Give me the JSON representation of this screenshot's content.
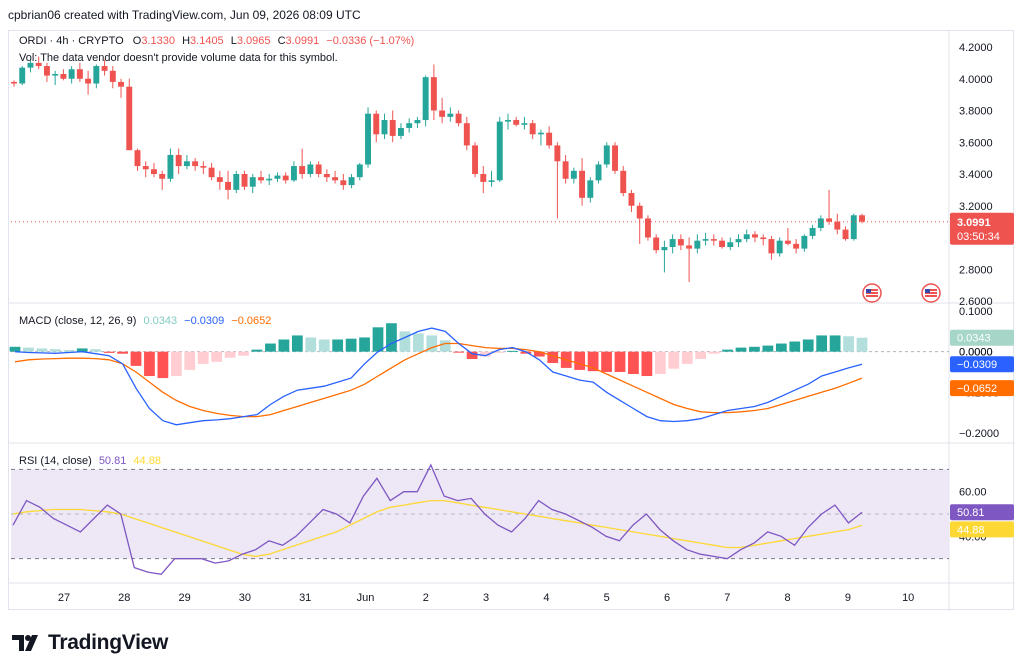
{
  "header": {
    "text": "cpbrian06 created with TradingView.com, Jun 09, 2026 08:09 UTC"
  },
  "legend": {
    "symbol": "ORDI · 4h · CRYPTO",
    "o_label": "O",
    "o_value": "3.1330",
    "h_label": "H",
    "h_value": "3.1405",
    "l_label": "L",
    "l_value": "3.0965",
    "c_label": "C",
    "c_value": "3.0991",
    "change": "−0.0336 (−1.07%)",
    "vol_note": "Vol: The data vendor doesn't provide volume data for this symbol."
  },
  "macd_legend": {
    "title": "MACD (close, 12, 26, 9)",
    "hist": "0.0343",
    "macd": "−0.0309",
    "signal": "−0.0652"
  },
  "rsi_legend": {
    "title": "RSI (14, close)",
    "rsi": "50.81",
    "ma": "44.88"
  },
  "price_tags": {
    "last_price": "3.0991",
    "countdown": "03:50:34",
    "hist": "0.0343",
    "zero": "0.0000",
    "macd": "−0.0309",
    "signal": "−0.0652",
    "rsi": "50.81",
    "rsi_ma": "44.88"
  },
  "footer": {
    "brand": "TradingView"
  },
  "colors": {
    "up": "#26a69a",
    "down": "#ef5350",
    "macd_line": "#2962ff",
    "signal_line": "#ff6d00",
    "hist_up_strong": "#26a69a",
    "hist_up_weak": "#b2dfdb",
    "hist_down_strong": "#ff5252",
    "hist_down_weak": "#ffcdd2",
    "rsi_line": "#7e57c2",
    "rsi_ma": "#fdd835",
    "rsi_band": "#ede7f6"
  },
  "icons": [
    "us-flag-event-icon",
    "tradingview-logo-icon"
  ],
  "chart_data": [
    {
      "type": "candlestick",
      "title": "ORDI · 4h · CRYPTO",
      "x_tick_labels": [
        "27",
        "28",
        "29",
        "30",
        "31",
        "Jun",
        "2",
        "3",
        "4",
        "5",
        "6",
        "7",
        "8",
        "9",
        "10"
      ],
      "y_tick_labels": [
        "4.2000",
        "4.0000",
        "3.8000",
        "3.6000",
        "3.4000",
        "3.2000",
        "2.8000",
        "2.6000"
      ],
      "ylim": [
        2.6,
        4.2
      ],
      "last_price": 3.0991,
      "candles": [
        [
          3.98,
          3.99,
          3.95,
          3.97
        ],
        [
          3.97,
          4.08,
          3.96,
          4.07
        ],
        [
          4.07,
          4.12,
          4.04,
          4.1
        ],
        [
          4.1,
          4.14,
          4.06,
          4.08
        ],
        [
          4.08,
          4.1,
          3.98,
          4.02
        ],
        [
          4.02,
          4.05,
          3.96,
          4.03
        ],
        [
          4.03,
          4.06,
          3.99,
          4.0
        ],
        [
          4.0,
          4.08,
          3.97,
          4.06
        ],
        [
          4.06,
          4.1,
          3.98,
          4.0
        ],
        [
          4.0,
          4.05,
          3.9,
          3.97
        ],
        [
          3.97,
          4.09,
          3.94,
          4.08
        ],
        [
          4.08,
          4.12,
          4.02,
          4.05
        ],
        [
          4.05,
          4.08,
          3.94,
          3.98
        ],
        [
          3.98,
          4.0,
          3.88,
          3.95
        ],
        [
          3.95,
          4.0,
          3.55,
          3.55
        ],
        [
          3.55,
          3.56,
          3.42,
          3.45
        ],
        [
          3.45,
          3.48,
          3.38,
          3.43
        ],
        [
          3.43,
          3.47,
          3.38,
          3.4
        ],
        [
          3.4,
          3.42,
          3.3,
          3.37
        ],
        [
          3.37,
          3.56,
          3.35,
          3.52
        ],
        [
          3.52,
          3.56,
          3.4,
          3.45
        ],
        [
          3.45,
          3.52,
          3.43,
          3.48
        ],
        [
          3.48,
          3.5,
          3.42,
          3.45
        ],
        [
          3.45,
          3.48,
          3.4,
          3.44
        ],
        [
          3.44,
          3.47,
          3.36,
          3.38
        ],
        [
          3.38,
          3.42,
          3.3,
          3.35
        ],
        [
          3.35,
          3.42,
          3.24,
          3.3
        ],
        [
          3.3,
          3.42,
          3.28,
          3.4
        ],
        [
          3.4,
          3.42,
          3.3,
          3.32
        ],
        [
          3.32,
          3.4,
          3.28,
          3.38
        ],
        [
          3.38,
          3.42,
          3.34,
          3.36
        ],
        [
          3.36,
          3.4,
          3.33,
          3.37
        ],
        [
          3.37,
          3.41,
          3.35,
          3.39
        ],
        [
          3.39,
          3.41,
          3.34,
          3.36
        ],
        [
          3.36,
          3.48,
          3.35,
          3.45
        ],
        [
          3.45,
          3.56,
          3.37,
          3.4
        ],
        [
          3.4,
          3.48,
          3.38,
          3.46
        ],
        [
          3.46,
          3.48,
          3.38,
          3.4
        ],
        [
          3.4,
          3.43,
          3.35,
          3.38
        ],
        [
          3.38,
          3.42,
          3.34,
          3.36
        ],
        [
          3.36,
          3.4,
          3.3,
          3.33
        ],
        [
          3.33,
          3.4,
          3.31,
          3.38
        ],
        [
          3.38,
          3.47,
          3.36,
          3.46
        ],
        [
          3.46,
          3.82,
          3.44,
          3.78
        ],
        [
          3.78,
          3.8,
          3.6,
          3.65
        ],
        [
          3.65,
          3.78,
          3.62,
          3.74
        ],
        [
          3.74,
          3.8,
          3.6,
          3.64
        ],
        [
          3.64,
          3.72,
          3.62,
          3.69
        ],
        [
          3.69,
          3.75,
          3.66,
          3.72
        ],
        [
          3.72,
          3.76,
          3.69,
          3.74
        ],
        [
          3.74,
          4.02,
          3.7,
          4.01
        ],
        [
          4.01,
          4.09,
          3.74,
          3.8
        ],
        [
          3.8,
          3.88,
          3.72,
          3.76
        ],
        [
          3.76,
          3.82,
          3.73,
          3.78
        ],
        [
          3.78,
          3.8,
          3.7,
          3.72
        ],
        [
          3.72,
          3.76,
          3.55,
          3.58
        ],
        [
          3.58,
          3.6,
          3.38,
          3.4
        ],
        [
          3.4,
          3.45,
          3.28,
          3.35
        ],
        [
          3.35,
          3.42,
          3.32,
          3.36
        ],
        [
          3.36,
          3.76,
          3.35,
          3.73
        ],
        [
          3.73,
          3.78,
          3.68,
          3.74
        ],
        [
          3.74,
          3.76,
          3.7,
          3.71
        ],
        [
          3.71,
          3.76,
          3.68,
          3.72
        ],
        [
          3.72,
          3.74,
          3.62,
          3.65
        ],
        [
          3.65,
          3.68,
          3.58,
          3.66
        ],
        [
          3.66,
          3.7,
          3.56,
          3.58
        ],
        [
          3.58,
          3.6,
          3.12,
          3.48
        ],
        [
          3.48,
          3.52,
          3.34,
          3.37
        ],
        [
          3.37,
          3.44,
          3.34,
          3.42
        ],
        [
          3.42,
          3.5,
          3.2,
          3.25
        ],
        [
          3.25,
          3.38,
          3.22,
          3.36
        ],
        [
          3.36,
          3.48,
          3.34,
          3.46
        ],
        [
          3.46,
          3.6,
          3.44,
          3.58
        ],
        [
          3.58,
          3.6,
          3.4,
          3.42
        ],
        [
          3.42,
          3.45,
          3.26,
          3.28
        ],
        [
          3.28,
          3.3,
          3.16,
          3.2
        ],
        [
          3.2,
          3.22,
          2.96,
          3.12
        ],
        [
          3.12,
          3.14,
          2.98,
          3.0
        ],
        [
          3.0,
          3.02,
          2.9,
          2.92
        ],
        [
          2.92,
          2.98,
          2.78,
          2.94
        ],
        [
          2.94,
          3.02,
          2.9,
          2.99
        ],
        [
          2.99,
          3.02,
          2.92,
          2.95
        ],
        [
          2.95,
          3.0,
          2.72,
          2.93
        ],
        [
          2.93,
          3.02,
          2.9,
          2.98
        ],
        [
          2.98,
          3.03,
          2.95,
          2.99
        ],
        [
          2.99,
          3.02,
          2.95,
          2.98
        ],
        [
          2.98,
          3.0,
          2.93,
          2.94
        ],
        [
          2.94,
          3.0,
          2.92,
          2.97
        ],
        [
          2.97,
          3.02,
          2.94,
          2.99
        ],
        [
          2.99,
          3.05,
          2.97,
          3.02
        ],
        [
          3.02,
          3.04,
          2.97,
          3.0
        ],
        [
          3.0,
          3.02,
          2.95,
          2.99
        ],
        [
          2.99,
          3.01,
          2.86,
          2.9
        ],
        [
          2.9,
          3.0,
          2.88,
          2.98
        ],
        [
          2.98,
          3.06,
          2.95,
          2.96
        ],
        [
          2.96,
          2.99,
          2.9,
          2.93
        ],
        [
          2.93,
          3.02,
          2.91,
          3.01
        ],
        [
          3.01,
          3.08,
          2.99,
          3.06
        ],
        [
          3.06,
          3.14,
          3.04,
          3.12
        ],
        [
          3.12,
          3.3,
          3.08,
          3.1
        ],
        [
          3.1,
          3.15,
          3.02,
          3.05
        ],
        [
          3.05,
          3.07,
          2.98,
          2.99
        ],
        [
          2.99,
          3.15,
          2.98,
          3.14
        ],
        [
          3.14,
          3.15,
          3.09,
          3.1
        ]
      ]
    },
    {
      "type": "macd",
      "title": "MACD (close, 12, 26, 9)",
      "y_tick_labels": [
        "0.1000",
        "0.0000",
        "−0.1000",
        "−0.2000"
      ],
      "ylim": [
        -0.22,
        0.11
      ],
      "macd_line": [
        0.0,
        -0.002,
        -0.003,
        -0.004,
        -0.002,
        0.0,
        -0.005,
        -0.01,
        -0.03,
        -0.09,
        -0.14,
        -0.17,
        -0.18,
        -0.175,
        -0.17,
        -0.168,
        -0.165,
        -0.16,
        -0.155,
        -0.13,
        -0.11,
        -0.095,
        -0.09,
        -0.085,
        -0.075,
        -0.065,
        -0.03,
        0.0,
        0.02,
        0.035,
        0.05,
        0.058,
        0.05,
        0.02,
        -0.005,
        -0.01,
        0.005,
        0.01,
        0.0,
        -0.02,
        -0.05,
        -0.06,
        -0.07,
        -0.075,
        -0.1,
        -0.12,
        -0.14,
        -0.16,
        -0.17,
        -0.172,
        -0.17,
        -0.165,
        -0.155,
        -0.145,
        -0.14,
        -0.135,
        -0.125,
        -0.11,
        -0.095,
        -0.08,
        -0.06,
        -0.05,
        -0.04,
        -0.0309
      ],
      "signal_line": [
        -0.025,
        -0.02,
        -0.018,
        -0.017,
        -0.016,
        -0.016,
        -0.017,
        -0.02,
        -0.03,
        -0.05,
        -0.075,
        -0.1,
        -0.12,
        -0.135,
        -0.145,
        -0.152,
        -0.157,
        -0.16,
        -0.16,
        -0.155,
        -0.145,
        -0.135,
        -0.125,
        -0.115,
        -0.105,
        -0.095,
        -0.08,
        -0.06,
        -0.04,
        -0.02,
        -0.005,
        0.01,
        0.02,
        0.02,
        0.015,
        0.01,
        0.008,
        0.008,
        0.005,
        0.0,
        -0.01,
        -0.02,
        -0.03,
        -0.04,
        -0.055,
        -0.07,
        -0.085,
        -0.1,
        -0.115,
        -0.13,
        -0.14,
        -0.148,
        -0.15,
        -0.15,
        -0.148,
        -0.145,
        -0.14,
        -0.13,
        -0.12,
        -0.11,
        -0.1,
        -0.09,
        -0.078,
        -0.0652
      ],
      "histogram": [
        0.012,
        0.01,
        0.008,
        0.006,
        0.004,
        0.008,
        0.006,
        -0.003,
        -0.005,
        -0.035,
        -0.06,
        -0.065,
        -0.06,
        -0.045,
        -0.03,
        -0.025,
        -0.015,
        -0.01,
        0.005,
        0.02,
        0.03,
        0.04,
        0.035,
        0.03,
        0.03,
        0.032,
        0.035,
        0.06,
        0.07,
        0.05,
        0.045,
        0.04,
        0.028,
        -0.002,
        -0.018,
        -0.012,
        -0.003,
        0.002,
        -0.005,
        -0.012,
        -0.028,
        -0.04,
        -0.045,
        -0.048,
        -0.05,
        -0.05,
        -0.055,
        -0.06,
        -0.055,
        -0.042,
        -0.03,
        -0.018,
        -0.005,
        0.005,
        0.01,
        0.012,
        0.015,
        0.02,
        0.025,
        0.03,
        0.04,
        0.04,
        0.038,
        0.0343
      ]
    },
    {
      "type": "line",
      "title": "RSI (14, close)",
      "y_tick_labels": [
        "60.00",
        "40.00"
      ],
      "ylim": [
        20,
        80
      ],
      "bands": [
        70,
        30
      ],
      "rsi": [
        45,
        56,
        53,
        48,
        45,
        42,
        48,
        54,
        50,
        26,
        24,
        23,
        30,
        30,
        30,
        28,
        29,
        32,
        34,
        38,
        36,
        40,
        46,
        52,
        50,
        46,
        58,
        66,
        56,
        60,
        60,
        72,
        58,
        56,
        57,
        50,
        45,
        42,
        48,
        56,
        52,
        50,
        47,
        44,
        40,
        38,
        45,
        50,
        43,
        38,
        34,
        32,
        31,
        30,
        34,
        37,
        42,
        40,
        36,
        44,
        50,
        54,
        46,
        50.81
      ],
      "rsi_ma": [
        50,
        51,
        51.5,
        52,
        52,
        52,
        51.5,
        51,
        50,
        48,
        46,
        44,
        42,
        40,
        38,
        36,
        34,
        32,
        31,
        32,
        34,
        36,
        38,
        40,
        42,
        45,
        48,
        51,
        53,
        54,
        55,
        56,
        56,
        55,
        54,
        53,
        52,
        51,
        50,
        49,
        48,
        47,
        46,
        45,
        44,
        43,
        42,
        41,
        40,
        39,
        38,
        37,
        36,
        35,
        35,
        36,
        37,
        38,
        39,
        40,
        41,
        42,
        43,
        44.88
      ]
    }
  ]
}
